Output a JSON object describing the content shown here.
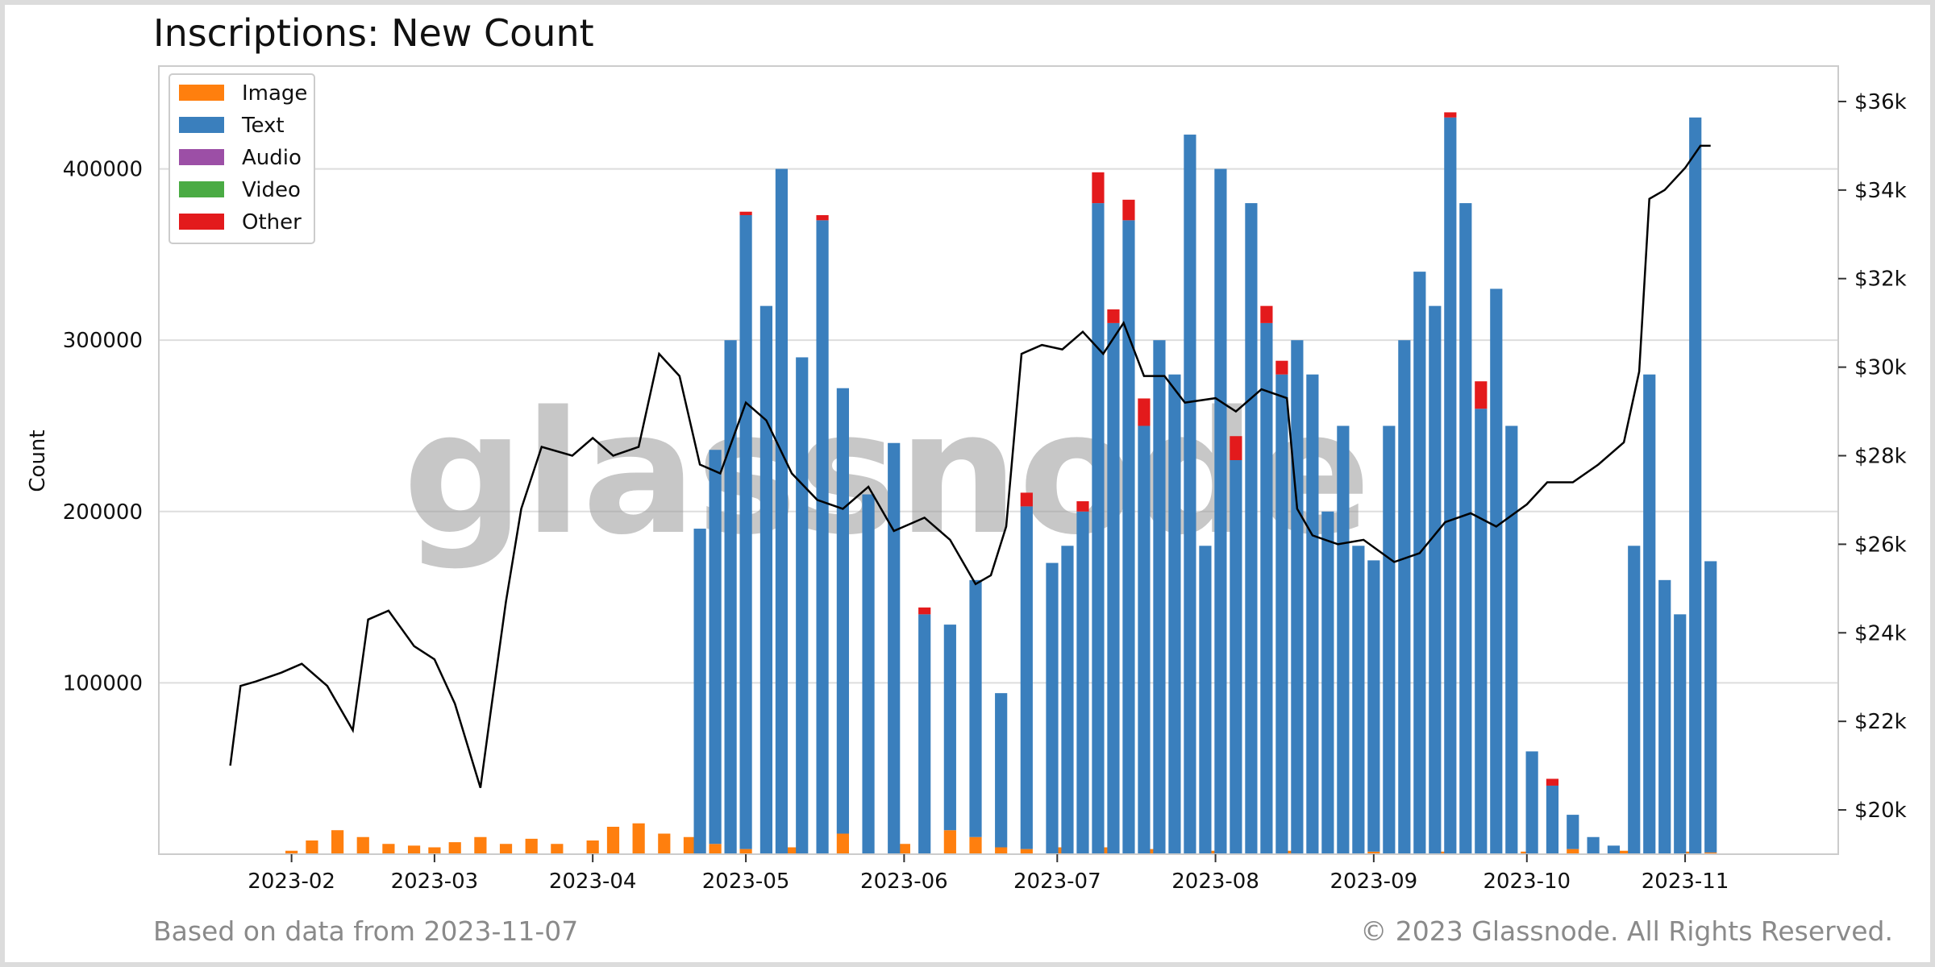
{
  "footer": {
    "left": "Based on data from 2023-11-07",
    "right": "© 2023 Glassnode. All Rights Reserved."
  },
  "watermark": "glassnode",
  "chart_data": {
    "type": "bar",
    "title": "Inscriptions: New Count",
    "ylabel": "Count",
    "ylim": [
      0,
      460000
    ],
    "y_ticks": [
      100000,
      200000,
      300000,
      400000
    ],
    "y2_ticks": [
      "$20k",
      "$22k",
      "$24k",
      "$26k",
      "$28k",
      "$30k",
      "$32k",
      "$34k",
      "$36k"
    ],
    "y2_values": [
      20000,
      22000,
      24000,
      26000,
      28000,
      30000,
      32000,
      34000,
      36000
    ],
    "y2lim": [
      19000,
      36800
    ],
    "x_ticks": [
      "2023-02",
      "2023-03",
      "2023-04",
      "2023-05",
      "2023-06",
      "2023-07",
      "2023-08",
      "2023-09",
      "2023-10",
      "2023-11"
    ],
    "x_tick_dates": [
      "2023-02-01",
      "2023-03-01",
      "2023-04-01",
      "2023-05-01",
      "2023-06-01",
      "2023-07-01",
      "2023-08-01",
      "2023-09-01",
      "2023-10-01",
      "2023-11-01"
    ],
    "xlim": [
      "2023-01-06",
      "2023-12-01"
    ],
    "stacked": true,
    "legend_position": "top-left",
    "grid": true,
    "colors": {
      "Image": "#ff7f0e",
      "Text": "#3a7fbd",
      "Audio": "#9c4fa6",
      "Video": "#4aab44",
      "Other": "#e31a1c",
      "Price": "#000000"
    },
    "series": [
      {
        "name": "Image",
        "dates": [
          "2023-02-01",
          "2023-02-05",
          "2023-02-10",
          "2023-02-15",
          "2023-02-20",
          "2023-02-25",
          "2023-03-01",
          "2023-03-05",
          "2023-03-10",
          "2023-03-15",
          "2023-03-20",
          "2023-03-25",
          "2023-04-01",
          "2023-04-05",
          "2023-04-10",
          "2023-04-15",
          "2023-04-20",
          "2023-04-25",
          "2023-05-01",
          "2023-05-10",
          "2023-05-20",
          "2023-06-01",
          "2023-06-10",
          "2023-06-15",
          "2023-06-20",
          "2023-06-25",
          "2023-07-01",
          "2023-07-10",
          "2023-07-20",
          "2023-08-01",
          "2023-08-15",
          "2023-09-01",
          "2023-09-15",
          "2023-10-01",
          "2023-10-10",
          "2023-10-20",
          "2023-11-01",
          "2023-11-06"
        ],
        "values": [
          2000,
          8000,
          14000,
          10000,
          6000,
          5000,
          4000,
          7000,
          10000,
          6000,
          9000,
          6000,
          8000,
          16000,
          18000,
          12000,
          10000,
          6000,
          3000,
          4000,
          12000,
          6000,
          14000,
          10000,
          4000,
          3000,
          4000,
          4000,
          3000,
          2000,
          2000,
          1500,
          1500,
          1500,
          3000,
          2000,
          1500,
          1000
        ]
      },
      {
        "name": "Text",
        "dates": [
          "2023-04-22",
          "2023-04-25",
          "2023-04-28",
          "2023-05-01",
          "2023-05-05",
          "2023-05-08",
          "2023-05-12",
          "2023-05-16",
          "2023-05-20",
          "2023-05-25",
          "2023-05-30",
          "2023-06-05",
          "2023-06-10",
          "2023-06-15",
          "2023-06-20",
          "2023-06-25",
          "2023-06-30",
          "2023-07-03",
          "2023-07-06",
          "2023-07-09",
          "2023-07-12",
          "2023-07-15",
          "2023-07-18",
          "2023-07-21",
          "2023-07-24",
          "2023-07-27",
          "2023-07-30",
          "2023-08-02",
          "2023-08-05",
          "2023-08-08",
          "2023-08-11",
          "2023-08-14",
          "2023-08-17",
          "2023-08-20",
          "2023-08-23",
          "2023-08-26",
          "2023-08-29",
          "2023-09-01",
          "2023-09-04",
          "2023-09-07",
          "2023-09-10",
          "2023-09-13",
          "2023-09-16",
          "2023-09-19",
          "2023-09-22",
          "2023-09-25",
          "2023-09-28",
          "2023-10-02",
          "2023-10-06",
          "2023-10-10",
          "2023-10-14",
          "2023-10-18",
          "2023-10-22",
          "2023-10-25",
          "2023-10-28",
          "2023-10-31",
          "2023-11-03",
          "2023-11-06"
        ],
        "values": [
          190000,
          230000,
          300000,
          370000,
          320000,
          400000,
          290000,
          370000,
          260000,
          210000,
          240000,
          140000,
          120000,
          150000,
          90000,
          200000,
          170000,
          180000,
          200000,
          380000,
          310000,
          370000,
          250000,
          300000,
          280000,
          420000,
          180000,
          400000,
          230000,
          380000,
          310000,
          280000,
          300000,
          280000,
          200000,
          250000,
          180000,
          170000,
          250000,
          300000,
          340000,
          320000,
          430000,
          380000,
          260000,
          330000,
          250000,
          60000,
          40000,
          20000,
          10000,
          5000,
          180000,
          280000,
          160000,
          140000,
          430000,
          170000
        ]
      },
      {
        "name": "Audio",
        "dates": [],
        "values": []
      },
      {
        "name": "Video",
        "dates": [],
        "values": []
      },
      {
        "name": "Other",
        "dates": [
          "2023-05-01",
          "2023-05-16",
          "2023-06-05",
          "2023-06-25",
          "2023-07-06",
          "2023-07-09",
          "2023-07-12",
          "2023-07-15",
          "2023-07-18",
          "2023-08-05",
          "2023-08-11",
          "2023-08-14",
          "2023-09-16",
          "2023-09-22",
          "2023-10-06"
        ],
        "values": [
          2000,
          3000,
          4000,
          8000,
          6000,
          18000,
          8000,
          12000,
          16000,
          14000,
          10000,
          8000,
          3000,
          16000,
          4000
        ]
      },
      {
        "name": "Price",
        "axis": "y2",
        "dates": [
          "2023-01-20",
          "2023-01-22",
          "2023-01-25",
          "2023-01-30",
          "2023-02-03",
          "2023-02-08",
          "2023-02-13",
          "2023-02-16",
          "2023-02-20",
          "2023-02-25",
          "2023-03-01",
          "2023-03-05",
          "2023-03-10",
          "2023-03-12",
          "2023-03-15",
          "2023-03-18",
          "2023-03-22",
          "2023-03-28",
          "2023-04-01",
          "2023-04-05",
          "2023-04-10",
          "2023-04-14",
          "2023-04-18",
          "2023-04-22",
          "2023-04-26",
          "2023-05-01",
          "2023-05-05",
          "2023-05-10",
          "2023-05-15",
          "2023-05-20",
          "2023-05-25",
          "2023-05-30",
          "2023-06-05",
          "2023-06-10",
          "2023-06-15",
          "2023-06-18",
          "2023-06-21",
          "2023-06-24",
          "2023-06-28",
          "2023-07-02",
          "2023-07-06",
          "2023-07-10",
          "2023-07-14",
          "2023-07-18",
          "2023-07-22",
          "2023-07-26",
          "2023-08-01",
          "2023-08-05",
          "2023-08-10",
          "2023-08-15",
          "2023-08-17",
          "2023-08-20",
          "2023-08-25",
          "2023-08-30",
          "2023-09-05",
          "2023-09-10",
          "2023-09-15",
          "2023-09-20",
          "2023-09-25",
          "2023-10-01",
          "2023-10-05",
          "2023-10-10",
          "2023-10-15",
          "2023-10-20",
          "2023-10-23",
          "2023-10-25",
          "2023-10-28",
          "2023-11-01",
          "2023-11-04",
          "2023-11-06"
        ],
        "values": [
          21000,
          22800,
          22900,
          23100,
          23300,
          22800,
          21800,
          24300,
          24500,
          23700,
          23400,
          22400,
          20500,
          22200,
          24700,
          26800,
          28200,
          28000,
          28400,
          28000,
          28200,
          30300,
          29800,
          27800,
          27600,
          29200,
          28800,
          27600,
          27000,
          26800,
          27300,
          26300,
          26600,
          26100,
          25100,
          25300,
          26400,
          30300,
          30500,
          30400,
          30800,
          30300,
          31000,
          29800,
          29800,
          29200,
          29300,
          29000,
          29500,
          29300,
          26800,
          26200,
          26000,
          26100,
          25600,
          25800,
          26500,
          26700,
          26400,
          26900,
          27400,
          27400,
          27800,
          28300,
          29900,
          33800,
          34000,
          34500,
          35000,
          35000
        ]
      }
    ]
  }
}
